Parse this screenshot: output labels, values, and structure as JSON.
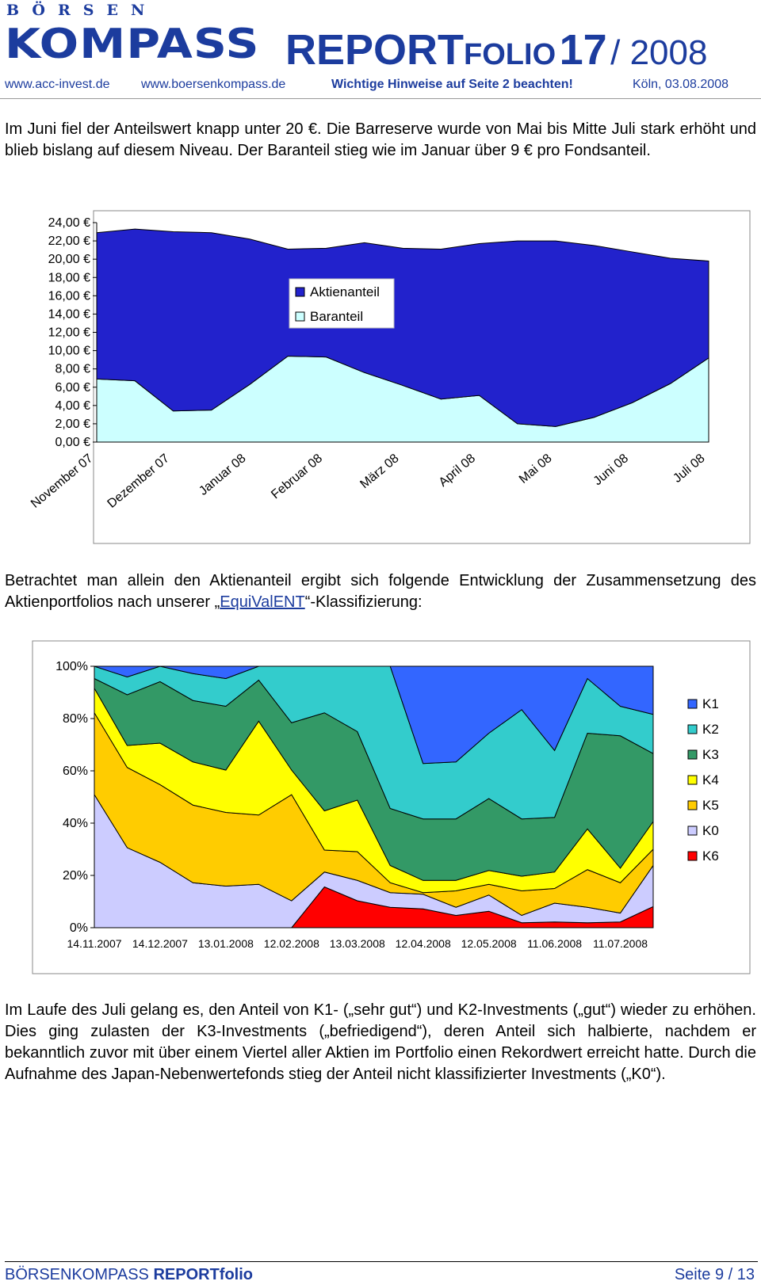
{
  "header": {
    "logo_top": "BÖRSEN",
    "logo_main": "KOMPASS",
    "brand_main": "REPORT",
    "brand_sub": "FOLIO",
    "issue": "17",
    "year": "/ 2008",
    "links": [
      "www.acc-invest.de",
      "www.boersenkompass.de",
      "Wichtige Hinweise auf Seite 2 beachten!",
      "Köln, 03.08.2008"
    ]
  },
  "paragraphs": [
    "Im Juni fiel der Anteilswert knapp unter 20 €. Die Barreserve wurde von Mai bis Mitte Juli stark erhöht und blieb bislang auf diesem Niveau. Der Baranteil stieg wie im Januar über 9 € pro Fondsanteil.",
    {
      "before": "Betrachtet man allein den Aktienanteil ergibt sich folgende Entwicklung der Zusammensetzung des Aktienportfolios nach unserer „",
      "link": "EquiValENT",
      "after": "“-Klassifizierung:"
    },
    "Im Laufe des Juli gelang es, den Anteil von K1- („sehr gut“) und K2-Investments („gut“) wieder zu erhöhen. Dies ging zulasten der K3-Investments („befriedigend“), deren Anteil sich halbierte, nachdem er bekanntlich zuvor mit über einem Viertel aller Aktien im Portfolio einen Rekordwert erreicht hatte. Durch die Aufnahme des Japan-Nebenwertefonds stieg der Anteil nicht klassifizierter Investments („K0“)."
  ],
  "chart_data": [
    {
      "type": "stacked_area",
      "categories": [
        "November 07",
        null,
        "Dezember 07",
        null,
        "Januar 08",
        null,
        "Februar 08",
        null,
        "März 08",
        null,
        "April 08",
        null,
        "Mai 08",
        null,
        "Juni 08",
        null,
        "Juli 08"
      ],
      "series": [
        {
          "name": "Baranteil",
          "color": "#ccffff",
          "values": [
            6.9,
            6.7,
            3.4,
            3.5,
            6.3,
            9.4,
            9.3,
            7.6,
            6.2,
            4.7,
            5.1,
            2.0,
            1.7,
            2.7,
            4.3,
            6.4,
            9.2
          ]
        },
        {
          "name": "Aktienanteil",
          "color": "#2222cc",
          "values": [
            16.0,
            16.6,
            19.6,
            19.4,
            15.9,
            11.7,
            11.9,
            14.2,
            15.0,
            16.4,
            16.6,
            20.0,
            20.3,
            18.8,
            16.5,
            13.7,
            10.6
          ]
        }
      ],
      "ylim": [
        0,
        24
      ],
      "yticks": [
        {
          "value": 0,
          "label": "0,00 €"
        },
        {
          "value": 2,
          "label": "2,00 €"
        },
        {
          "value": 4,
          "label": "4,00 €"
        },
        {
          "value": 6,
          "label": "6,00 €"
        },
        {
          "value": 8,
          "label": "8,00 €"
        },
        {
          "value": 10,
          "label": "10,00 €"
        },
        {
          "value": 12,
          "label": "12,00 €"
        },
        {
          "value": 14,
          "label": "14,00 €"
        },
        {
          "value": 16,
          "label": "16,00 €"
        },
        {
          "value": 18,
          "label": "18,00 €"
        },
        {
          "value": 20,
          "label": "20,00 €"
        },
        {
          "value": 22,
          "label": "22,00 €"
        },
        {
          "value": 24,
          "label": "24,00 €"
        }
      ],
      "grid": false,
      "legend": "inside-top"
    },
    {
      "type": "stacked_area",
      "categories": [
        "14.11.2007",
        null,
        "14.12.2007",
        null,
        "13.01.2008",
        null,
        "12.02.2008",
        null,
        "13.03.2008",
        null,
        "12.04.2008",
        null,
        "12.05.2008",
        null,
        "11.06.2008",
        null,
        "11.07.2008",
        null
      ],
      "series": [
        {
          "name": "K6",
          "color": "#ff0000",
          "values": [
            0,
            0,
            0,
            0,
            0,
            0,
            0,
            15.6,
            10.3,
            7.8,
            7.2,
            4.7,
            6.3,
            1.9,
            2.2,
            1.9,
            2.2,
            8.1
          ]
        },
        {
          "name": "K0",
          "color": "#ccccff",
          "values": [
            50.9,
            30.6,
            25,
            17.2,
            15.9,
            16.6,
            10.3,
            5.7,
            7.8,
            5.6,
            5.6,
            3.1,
            6.2,
            2.8,
            7.2,
            5.9,
            3.4,
            15.7
          ]
        },
        {
          "name": "K5",
          "color": "#ffcc00",
          "values": [
            31.3,
            30.7,
            29.7,
            29.7,
            28.2,
            26.5,
            40.6,
            8.4,
            11,
            3.8,
            0.6,
            6.3,
            4.1,
            9.4,
            5.6,
            14.4,
            11.6,
            6.2
          ]
        },
        {
          "name": "K4",
          "color": "#ffff00",
          "values": [
            9.4,
            8.4,
            15.9,
            16.5,
            16.2,
            35.9,
            9.4,
            15,
            19.7,
            6.6,
            4.7,
            4,
            5.3,
            5.6,
            6.3,
            15.6,
            5.6,
            10.6
          ]
        },
        {
          "name": "K3",
          "color": "#339966",
          "values": [
            3.7,
            19.4,
            23.5,
            23.5,
            24.4,
            15.7,
            18.1,
            37.5,
            26.2,
            21.8,
            23.5,
            23.5,
            27.5,
            21.9,
            20.9,
            36.6,
            50.6,
            26
          ]
        },
        {
          "name": "K2",
          "color": "#33cccc",
          "values": [
            4.7,
            6.8,
            5.9,
            10.3,
            10.6,
            5.3,
            21.6,
            17.8,
            25,
            54.4,
            21.2,
            21.8,
            25,
            41.8,
            25.6,
            20.9,
            11.3,
            15
          ]
        },
        {
          "name": "K1",
          "color": "#3366ff",
          "values": [
            0,
            4.1,
            0,
            2.8,
            4.7,
            0,
            0,
            0,
            0,
            0,
            37.2,
            36.6,
            25.6,
            16.6,
            32.2,
            4.7,
            15.3,
            18.4
          ]
        }
      ],
      "ylim": [
        0,
        100
      ],
      "yticks": [
        {
          "value": 0,
          "label": "0%"
        },
        {
          "value": 20,
          "label": "20%"
        },
        {
          "value": 40,
          "label": "40%"
        },
        {
          "value": 60,
          "label": "60%"
        },
        {
          "value": 80,
          "label": "80%"
        },
        {
          "value": 100,
          "label": "100%"
        }
      ],
      "grid": false,
      "legend": "right"
    }
  ],
  "footer": {
    "brand": "BÖRSENKOMPASS",
    "product": "REPORTfolio",
    "page": "Seite 9 / 13"
  }
}
